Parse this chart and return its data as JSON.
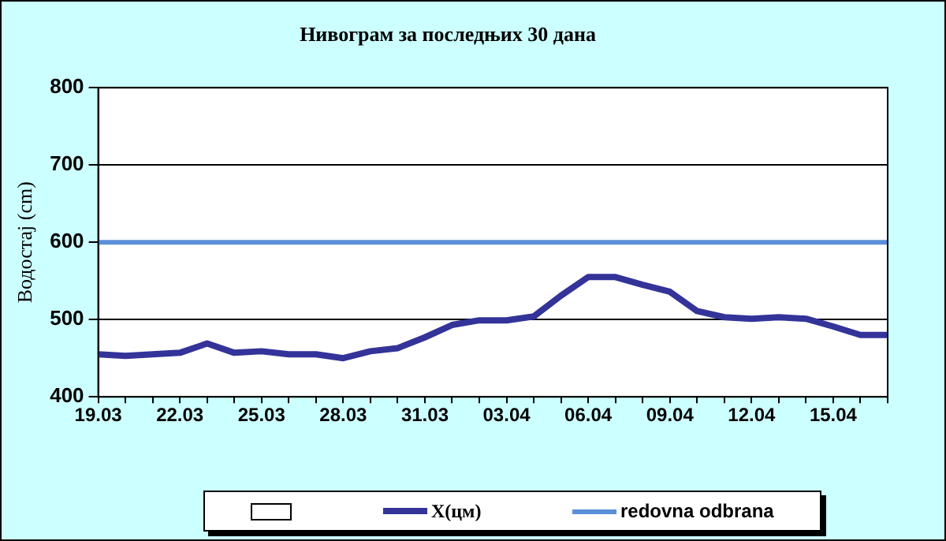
{
  "chart_data": {
    "type": "line",
    "title": "Нивограм за последњих 30 дана",
    "ylabel": "Водостај (cm)",
    "categories": [
      "19.03",
      null,
      null,
      "22.03",
      null,
      null,
      "25.03",
      null,
      null,
      "28.03",
      null,
      null,
      "31.03",
      null,
      null,
      "03.04",
      null,
      null,
      "06.04",
      null,
      null,
      "09.04",
      null,
      null,
      "12.04",
      null,
      null,
      "15.04",
      null,
      null
    ],
    "series": [
      {
        "name": "X(цм)",
        "color": "#333399",
        "values": [
          455,
          453,
          455,
          457,
          469,
          457,
          459,
          455,
          455,
          450,
          459,
          463,
          477,
          493,
          499,
          499,
          504,
          531,
          555,
          555,
          545,
          536,
          511,
          503,
          501,
          503,
          501,
          491,
          480,
          480
        ]
      }
    ],
    "ref_lines": [
      {
        "axis": "y",
        "value": 600,
        "label": "redovna odbrana",
        "color": "#5b8fd8"
      }
    ],
    "ylim": [
      400,
      800
    ],
    "yticks": [
      400,
      500,
      600,
      700,
      800
    ],
    "grid": "y",
    "legend": "bottom",
    "marker": "none",
    "line_style": "solid"
  }
}
